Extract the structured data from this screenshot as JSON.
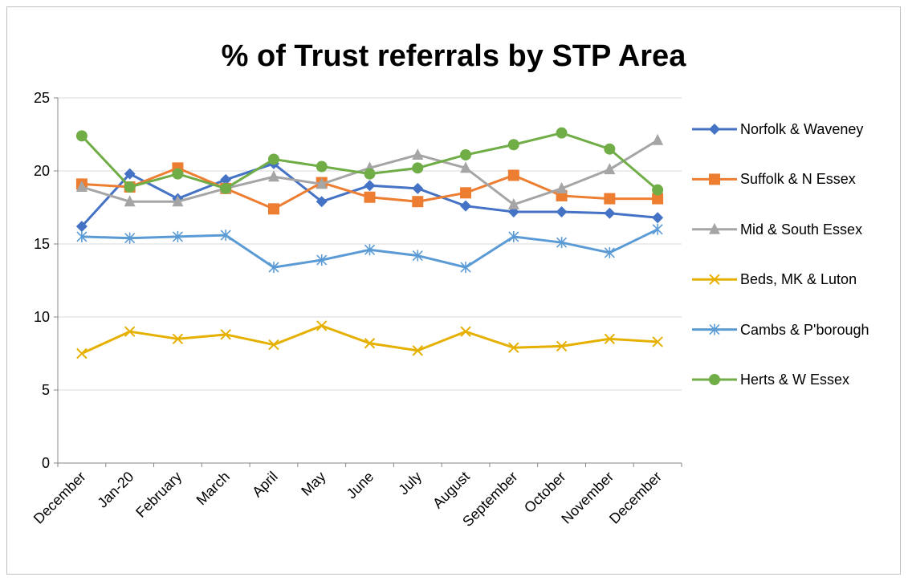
{
  "chart_data": {
    "type": "line",
    "title": "% of Trust referrals by STP Area",
    "categories": [
      "December",
      "Jan-20",
      "February",
      "March",
      "April",
      "May",
      "June",
      "July",
      "August",
      "September",
      "October",
      "November",
      "December"
    ],
    "ylim": [
      0,
      25
    ],
    "yticks": [
      0,
      5,
      10,
      15,
      20,
      25
    ],
    "grid": true,
    "legend": "right",
    "series": [
      {
        "name": "Norfolk & Waveney",
        "color": "#4472c4",
        "marker": "diamond",
        "values": [
          16.2,
          19.8,
          18.1,
          19.4,
          20.5,
          17.9,
          19.0,
          18.8,
          17.6,
          17.2,
          17.2,
          17.1,
          16.8
        ]
      },
      {
        "name": "Suffolk & N Essex",
        "color": "#ed7d31",
        "marker": "square",
        "values": [
          19.1,
          18.9,
          20.2,
          18.8,
          17.4,
          19.2,
          18.2,
          17.9,
          18.5,
          19.7,
          18.3,
          18.1,
          18.1
        ]
      },
      {
        "name": "Mid & South Essex",
        "color": "#a5a5a5",
        "marker": "triangle",
        "values": [
          18.9,
          17.9,
          17.9,
          18.8,
          19.6,
          19.1,
          20.2,
          21.1,
          20.2,
          17.7,
          18.8,
          20.1,
          22.1
        ]
      },
      {
        "name": "Beds, MK & Luton",
        "color": "#e6b000",
        "marker": "x",
        "values": [
          7.5,
          9.0,
          8.5,
          8.8,
          8.1,
          9.4,
          8.2,
          7.7,
          9.0,
          7.9,
          8.0,
          8.5,
          8.3
        ]
      },
      {
        "name": "Cambs & P'borough",
        "color": "#5b9bd5",
        "marker": "star",
        "values": [
          15.5,
          15.4,
          15.5,
          15.6,
          13.4,
          13.9,
          14.6,
          14.2,
          13.4,
          15.5,
          15.1,
          14.4,
          16.0
        ]
      },
      {
        "name": "Herts & W Essex",
        "color": "#70ad47",
        "marker": "circle",
        "values": [
          22.4,
          18.9,
          19.8,
          18.8,
          20.8,
          20.3,
          19.8,
          20.2,
          21.1,
          21.8,
          22.6,
          21.5,
          18.7
        ]
      }
    ]
  }
}
